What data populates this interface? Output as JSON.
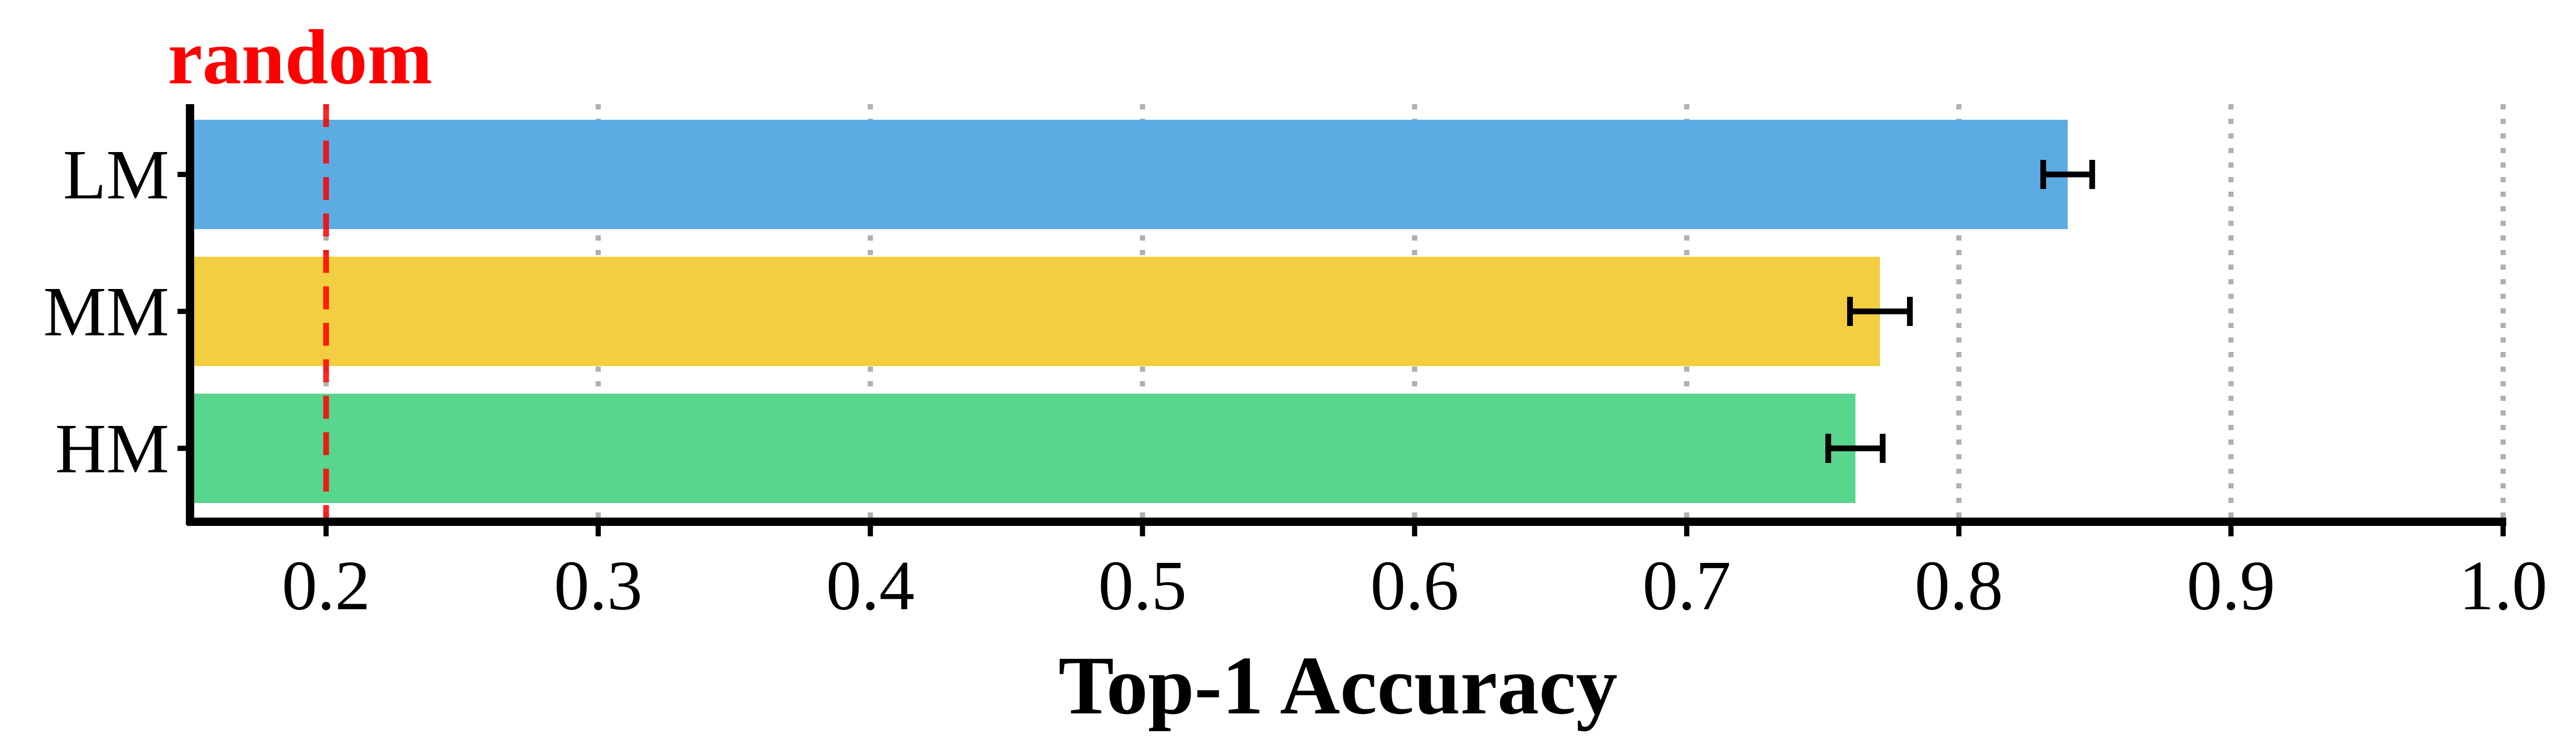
{
  "chart_data": {
    "type": "bar",
    "orientation": "horizontal",
    "categories": [
      "LM",
      "MM",
      "HM"
    ],
    "values": [
      0.84,
      0.771,
      0.762
    ],
    "errors": [
      0.009,
      0.011,
      0.01
    ],
    "colors": [
      "#5DABE3",
      "#F2CE40",
      "#58D68D"
    ],
    "xlabel": "Top-1 Accuracy",
    "ylabel": "",
    "xlim": [
      0.15,
      1.0
    ],
    "xticks": [
      0.2,
      0.3,
      0.4,
      0.5,
      0.6,
      0.7,
      0.8,
      0.9,
      1.0
    ],
    "xtick_labels": [
      "0.2",
      "0.3",
      "0.4",
      "0.5",
      "0.6",
      "0.7",
      "0.8",
      "0.9",
      "1.0"
    ],
    "grid": "vertical-dotted",
    "reference_line": {
      "value": 0.2,
      "label": "random",
      "color": "#FF0000",
      "style": "dashed"
    }
  }
}
